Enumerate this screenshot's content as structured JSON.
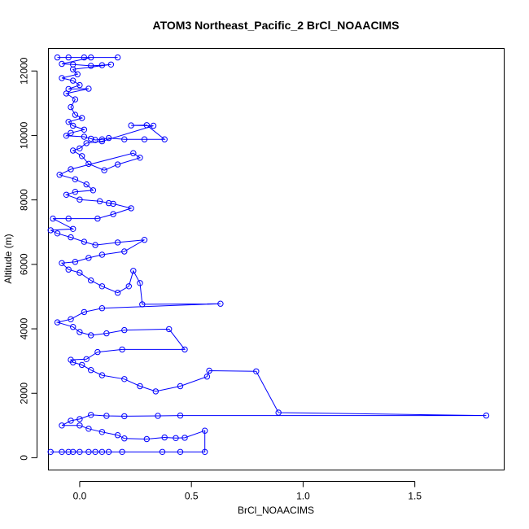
{
  "chart_data": {
    "type": "line",
    "title": "ATOM3 Northeast_Pacific_2 BrCl_NOAACIMS",
    "xlabel": "BrCl_NOAACIMS",
    "ylabel": "Altitude (m)",
    "xlim": [
      -0.14,
      1.9
    ],
    "ylim": [
      -380,
      12700
    ],
    "x_ticks": [
      0.0,
      0.5,
      1.0,
      1.5
    ],
    "x_tick_labels": [
      "0.0",
      "0.5",
      "1.0",
      "1.5"
    ],
    "y_ticks": [
      0,
      2000,
      4000,
      6000,
      8000,
      10000,
      12000
    ],
    "y_tick_labels": [
      "0",
      "2000",
      "4000",
      "6000",
      "8000",
      "10000",
      "12000"
    ],
    "grid": false,
    "series_color": "#0000ff",
    "marker": "open-circle",
    "series": [
      {
        "name": "",
        "points": [
          [
            0.17,
            12420
          ],
          [
            -0.1,
            12420
          ],
          [
            -0.05,
            12420
          ],
          [
            0.02,
            12420
          ],
          [
            0.05,
            12420
          ],
          [
            -0.08,
            12220
          ],
          [
            -0.03,
            12200
          ],
          [
            0.05,
            12160
          ],
          [
            0.1,
            12180
          ],
          [
            0.14,
            12200
          ],
          [
            -0.03,
            12050
          ],
          [
            -0.01,
            11900
          ],
          [
            -0.08,
            11780
          ],
          [
            -0.03,
            11700
          ],
          [
            0.0,
            11560
          ],
          [
            -0.05,
            11440
          ],
          [
            0.04,
            11450
          ],
          [
            -0.06,
            11300
          ],
          [
            -0.02,
            11120
          ],
          [
            -0.04,
            10880
          ],
          [
            -0.02,
            10640
          ],
          [
            0.01,
            10540
          ],
          [
            -0.05,
            10420
          ],
          [
            -0.03,
            10300
          ],
          [
            0.02,
            10180
          ],
          [
            -0.04,
            10080
          ],
          [
            -0.06,
            9990
          ],
          [
            0.02,
            9960
          ],
          [
            0.05,
            9900
          ],
          [
            0.07,
            9860
          ],
          [
            0.1,
            9880
          ],
          [
            0.13,
            9920
          ],
          [
            0.2,
            9880
          ],
          [
            0.29,
            9880
          ],
          [
            0.38,
            9880
          ],
          [
            0.3,
            10320
          ],
          [
            0.23,
            10310
          ],
          [
            0.33,
            10300
          ],
          [
            0.1,
            9820
          ],
          [
            0.03,
            9760
          ],
          [
            0.0,
            9600
          ],
          [
            -0.03,
            9530
          ],
          [
            0.01,
            9360
          ],
          [
            0.04,
            9120
          ],
          [
            0.11,
            8920
          ],
          [
            0.17,
            9100
          ],
          [
            0.27,
            9310
          ],
          [
            0.24,
            9450
          ],
          [
            -0.04,
            8950
          ],
          [
            -0.09,
            8780
          ],
          [
            -0.02,
            8640
          ],
          [
            0.03,
            8480
          ],
          [
            0.06,
            8300
          ],
          [
            -0.02,
            8250
          ],
          [
            -0.06,
            8160
          ],
          [
            0.0,
            8010
          ],
          [
            0.09,
            7960
          ],
          [
            0.13,
            7900
          ],
          [
            0.15,
            7880
          ],
          [
            0.23,
            7740
          ],
          [
            0.15,
            7560
          ],
          [
            0.08,
            7420
          ],
          [
            -0.05,
            7420
          ],
          [
            -0.12,
            7420
          ],
          [
            -0.03,
            7100
          ],
          [
            -0.13,
            7060
          ],
          [
            -0.1,
            6960
          ],
          [
            -0.04,
            6840
          ],
          [
            0.02,
            6700
          ],
          [
            0.07,
            6600
          ],
          [
            0.17,
            6680
          ],
          [
            0.29,
            6760
          ],
          [
            0.2,
            6400
          ],
          [
            0.1,
            6300
          ],
          [
            0.04,
            6200
          ],
          [
            -0.02,
            6080
          ],
          [
            -0.08,
            6040
          ],
          [
            -0.05,
            5840
          ],
          [
            0.0,
            5740
          ],
          [
            0.05,
            5500
          ],
          [
            0.1,
            5320
          ],
          [
            0.17,
            5120
          ],
          [
            0.22,
            5320
          ],
          [
            0.24,
            5800
          ],
          [
            0.27,
            5420
          ],
          [
            0.28,
            4760
          ],
          [
            0.63,
            4780
          ],
          [
            0.1,
            4640
          ],
          [
            0.02,
            4520
          ],
          [
            -0.04,
            4300
          ],
          [
            -0.1,
            4200
          ],
          [
            -0.03,
            4060
          ],
          [
            0.0,
            3900
          ],
          [
            0.05,
            3800
          ],
          [
            0.12,
            3860
          ],
          [
            0.2,
            3960
          ],
          [
            0.4,
            3990
          ],
          [
            0.47,
            3360
          ],
          [
            0.19,
            3360
          ],
          [
            0.08,
            3280
          ],
          [
            0.03,
            3060
          ],
          [
            -0.04,
            3040
          ],
          [
            -0.03,
            2960
          ],
          [
            0.01,
            2880
          ],
          [
            0.05,
            2720
          ],
          [
            0.1,
            2560
          ],
          [
            0.2,
            2440
          ],
          [
            0.27,
            2220
          ],
          [
            0.34,
            2060
          ],
          [
            0.45,
            2220
          ],
          [
            0.57,
            2520
          ],
          [
            0.58,
            2700
          ],
          [
            0.79,
            2680
          ],
          [
            0.89,
            1400
          ],
          [
            1.82,
            1310
          ],
          [
            0.45,
            1310
          ],
          [
            0.35,
            1300
          ],
          [
            0.2,
            1290
          ],
          [
            0.12,
            1300
          ],
          [
            0.05,
            1330
          ],
          [
            0.0,
            1200
          ],
          [
            -0.04,
            1150
          ],
          [
            -0.08,
            1000
          ],
          [
            0.0,
            1000
          ],
          [
            0.04,
            900
          ],
          [
            0.1,
            800
          ],
          [
            0.17,
            700
          ],
          [
            0.2,
            600
          ],
          [
            0.3,
            580
          ],
          [
            0.38,
            630
          ],
          [
            0.43,
            610
          ],
          [
            0.47,
            620
          ],
          [
            0.56,
            840
          ],
          [
            0.56,
            180
          ],
          [
            0.45,
            180
          ],
          [
            0.37,
            180
          ],
          [
            0.19,
            180
          ],
          [
            0.13,
            180
          ],
          [
            0.1,
            180
          ],
          [
            0.07,
            180
          ],
          [
            0.04,
            180
          ],
          [
            0.0,
            180
          ],
          [
            -0.03,
            180
          ],
          [
            -0.05,
            180
          ],
          [
            -0.08,
            180
          ],
          [
            -0.13,
            180
          ]
        ]
      }
    ]
  }
}
